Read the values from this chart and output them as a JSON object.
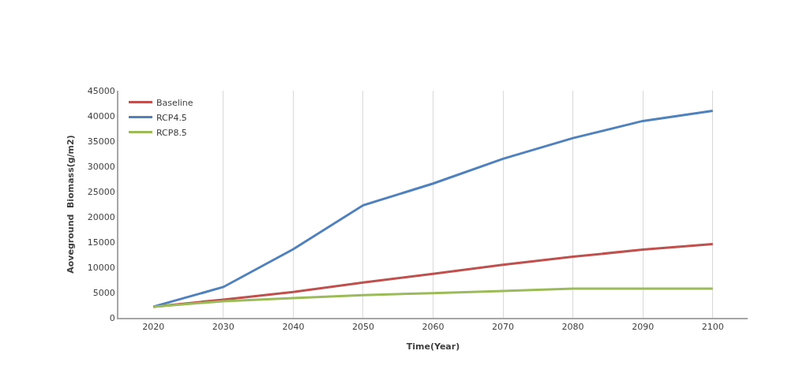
{
  "chart_data": {
    "type": "line",
    "xlabel": "Time(Year)",
    "ylabel": "Aoveground  Biomass(g/m2)",
    "categories": [
      "2020",
      "2030",
      "2040",
      "2050",
      "2060",
      "2070",
      "2080",
      "2090",
      "2100"
    ],
    "series": [
      {
        "name": "Baseline",
        "color": "#c0504d",
        "values": [
          2200,
          3600,
          5100,
          7000,
          8700,
          10500,
          12100,
          13500,
          14600
        ]
      },
      {
        "name": "RCP4.5",
        "color": "#4f81bd",
        "values": [
          2200,
          6100,
          13600,
          22300,
          26600,
          31500,
          35600,
          39000,
          41000
        ]
      },
      {
        "name": "RCP8.5",
        "color": "#9bbb59",
        "values": [
          2200,
          3300,
          3900,
          4500,
          4900,
          5300,
          5800,
          5800,
          5800
        ]
      }
    ],
    "ylim": [
      0,
      45000
    ],
    "yticks": [
      0,
      5000,
      10000,
      15000,
      20000,
      25000,
      30000,
      35000,
      40000,
      45000
    ],
    "grid": "x",
    "legend": "top left",
    "marker": "none",
    "line_style": "solid"
  }
}
